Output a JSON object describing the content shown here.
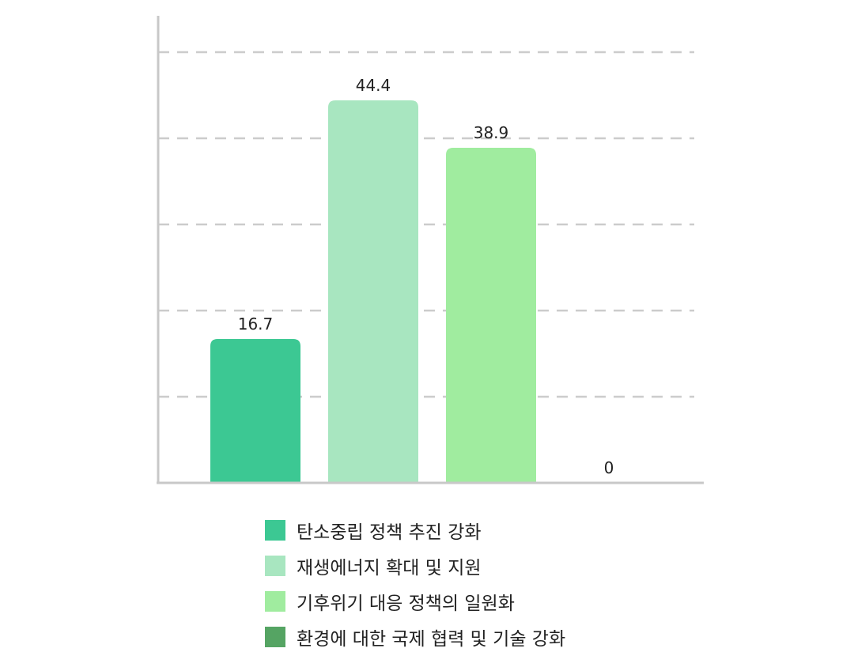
{
  "chart_data": {
    "type": "bar",
    "categories": [
      "탄소중립 정책 추진 강화",
      "재생에너지 확대 및 지원",
      "기후위기 대응 정책의 일원화",
      "환경에 대한 국제 협력 및 기술 강화"
    ],
    "values": [
      16.7,
      44.4,
      38.9,
      0
    ],
    "value_labels": [
      "16.7",
      "44.4",
      "38.9",
      "0"
    ],
    "colors": [
      "#3cc893",
      "#a8e6c0",
      "#a0ec9f",
      "#55a463"
    ],
    "ylim": [
      0,
      50
    ],
    "grid": true,
    "legend_position": "bottom"
  }
}
